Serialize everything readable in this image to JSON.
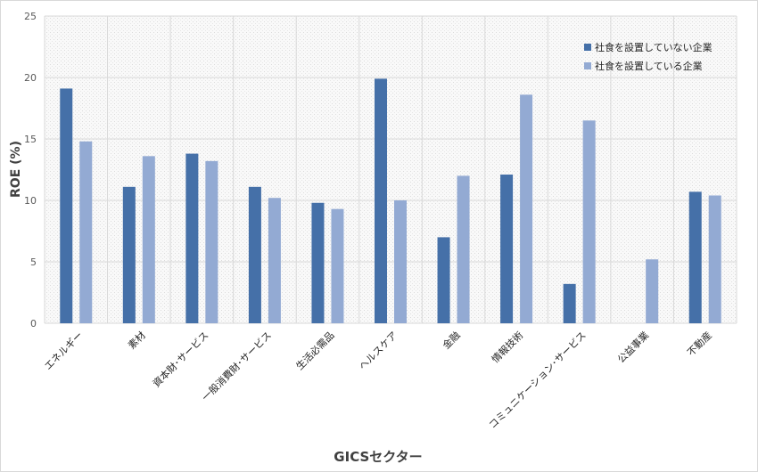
{
  "chart_data": {
    "type": "bar",
    "title": "",
    "xlabel": "GICSセクター",
    "ylabel": "ROE (%)",
    "ylim": [
      0,
      25
    ],
    "yticks": [
      0,
      5,
      10,
      15,
      20,
      25
    ],
    "grid": true,
    "legend_position": "top-right",
    "categories": [
      "エネルギー",
      "素材",
      "資本財･サービス",
      "一般消費財･サービス",
      "生活必需品",
      "ヘルスケア",
      "金融",
      "情報技術",
      "コミュニケーション･サービス",
      "公益事業",
      "不動産"
    ],
    "series": [
      {
        "name": "社食を設置していない企業",
        "color": "#4570a8",
        "values": [
          19.1,
          11.1,
          13.8,
          11.1,
          9.8,
          19.9,
          7.0,
          12.1,
          3.2,
          null,
          10.7
        ]
      },
      {
        "name": "社食を設置している企業",
        "color": "#93aad3",
        "values": [
          14.8,
          13.6,
          13.2,
          10.2,
          9.3,
          10.0,
          12.0,
          18.6,
          16.5,
          5.2,
          10.4
        ]
      }
    ]
  }
}
